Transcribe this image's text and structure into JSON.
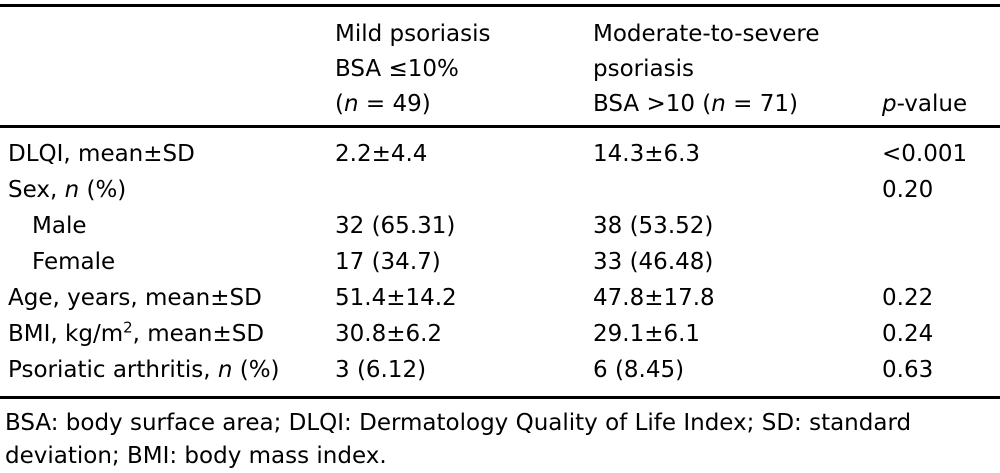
{
  "colors": {
    "background": "#ffffff",
    "text": "#000000",
    "rule": "#000000"
  },
  "table": {
    "header": {
      "col1": "",
      "mild": [
        {
          "t": "Mild psoriasis"
        },
        {
          "br": true
        },
        {
          "t": "BSA ≤10%"
        },
        {
          "br": true
        },
        {
          "t": "("
        },
        {
          "t": "n",
          "i": true
        },
        {
          "t": " = 49)"
        }
      ],
      "moderate": [
        {
          "t": "Moderate-to-severe"
        },
        {
          "br": true
        },
        {
          "t": "psoriasis"
        },
        {
          "br": true
        },
        {
          "t": "BSA >10 ("
        },
        {
          "t": "n",
          "i": true
        },
        {
          "t": " = 71)"
        }
      ],
      "pvalue": [
        {
          "t": "p",
          "i": true
        },
        {
          "t": "-value"
        }
      ]
    },
    "rows": [
      {
        "label": [
          {
            "t": "DLQI, mean±SD"
          }
        ],
        "mild": "2.2±4.4",
        "moderate": "14.3±6.3",
        "p": "<0.001"
      },
      {
        "label": [
          {
            "t": "Sex, "
          },
          {
            "t": "n",
            "i": true
          },
          {
            "t": " (%)"
          }
        ],
        "mild": "",
        "moderate": "",
        "p": "0.20"
      },
      {
        "label": [
          {
            "t": "Male"
          }
        ],
        "mild": "32 (65.31)",
        "moderate": "38 (53.52)",
        "p": ""
      },
      {
        "label": [
          {
            "t": "Female"
          }
        ],
        "mild": "17 (34.7)",
        "moderate": "33 (46.48)",
        "p": ""
      },
      {
        "label": [
          {
            "t": "Age, years, mean±SD"
          }
        ],
        "mild": "51.4±14.2",
        "moderate": "47.8±17.8",
        "p": "0.22"
      },
      {
        "label": [
          {
            "t": "BMI, kg/m"
          },
          {
            "t": "2",
            "sup": true
          },
          {
            "t": ", mean±SD"
          }
        ],
        "mild": "30.8±6.2",
        "moderate": "29.1±6.1",
        "p": "0.24"
      },
      {
        "label": [
          {
            "t": "Psoriatic arthritis, "
          },
          {
            "t": "n",
            "i": true
          },
          {
            "t": " (%)"
          }
        ],
        "mild": "3 (6.12)",
        "moderate": "6 (8.45)",
        "p": "0.63"
      }
    ]
  },
  "footnote": [
    {
      "t": "BSA: body surface area; DLQI: Dermatology Quality of Life Index; SD: standard"
    },
    {
      "br": true
    },
    {
      "t": "deviation; BMI: body mass index."
    }
  ]
}
